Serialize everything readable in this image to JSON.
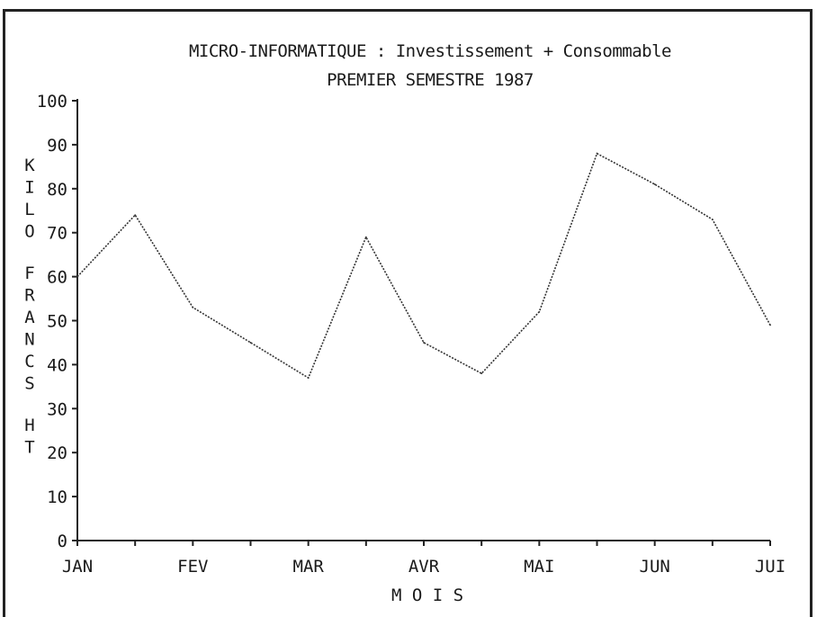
{
  "chart_data": {
    "type": "line",
    "title": "MICRO-INFORMATIQUE : Investissement + Consommable",
    "subtitle": "PREMIER SEMESTRE 1987",
    "xlabel": "M O I S",
    "ylabel": "KILO FRANCS HT",
    "x_tick_labels": [
      "JAN",
      "FEV",
      "MAR",
      "AVR",
      "MAI",
      "JUN",
      "JUI"
    ],
    "y_tick_labels": [
      "0",
      "10",
      "20",
      "30",
      "40",
      "50",
      "60",
      "70",
      "80",
      "90",
      "100"
    ],
    "ylim": [
      0,
      100
    ],
    "xlim": [
      0,
      6
    ],
    "grid": false,
    "x": [
      0,
      0.5,
      1,
      1.5,
      2,
      2.5,
      3,
      3.5,
      4,
      4.5,
      5,
      5.5,
      6
    ],
    "series": [
      {
        "values": [
          60,
          74,
          53,
          45,
          37,
          69,
          45,
          38,
          52,
          88,
          81,
          73,
          49
        ]
      }
    ],
    "line_color": "#333333"
  }
}
